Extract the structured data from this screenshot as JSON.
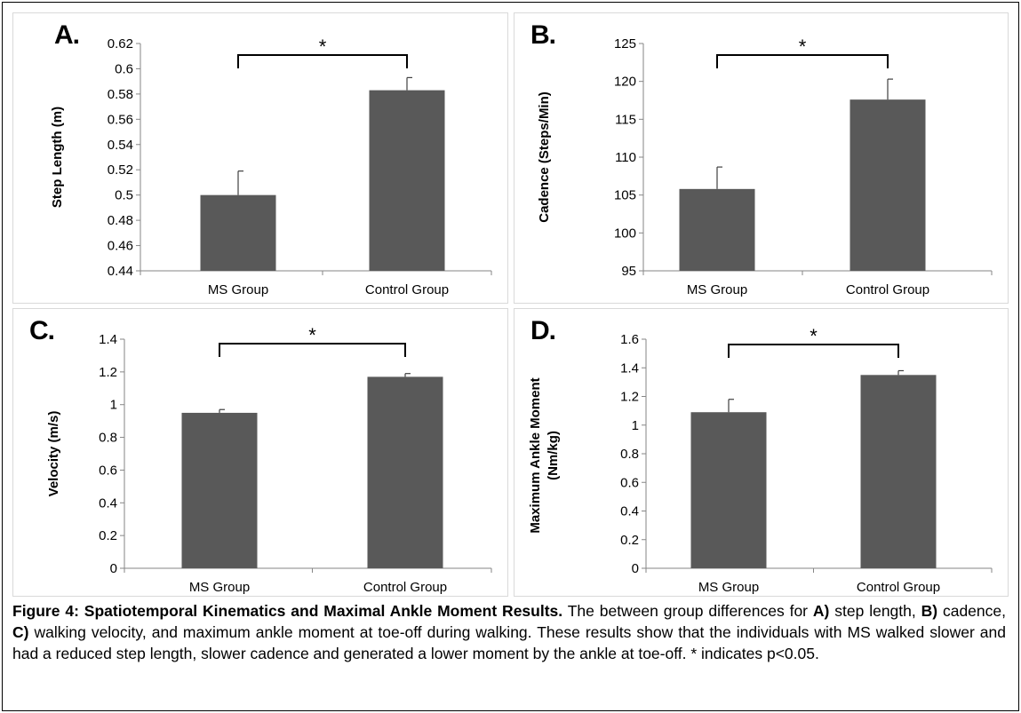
{
  "chart_data": [
    {
      "type": "bar",
      "panel_label": "A.",
      "ylabel": "Step Length (m)",
      "categories": [
        "MS Group",
        "Control Group"
      ],
      "values": [
        0.5,
        0.583
      ],
      "errors": [
        0.019,
        0.01
      ],
      "ylim": [
        0.44,
        0.62
      ],
      "yticks": [
        0.44,
        0.46,
        0.48,
        0.5,
        0.52,
        0.54,
        0.56,
        0.58,
        0.6,
        0.62
      ],
      "ytick_labels": [
        "0.44",
        "0.46",
        "0.48",
        "0.5",
        "0.52",
        "0.54",
        "0.56",
        "0.58",
        "0.6",
        "0.62"
      ],
      "significance": "*",
      "grid": false,
      "bar_color": "#595959"
    },
    {
      "type": "bar",
      "panel_label": "B.",
      "ylabel": "Cadence (Steps/Min)",
      "categories": [
        "MS Group",
        "Control Group"
      ],
      "values": [
        105.8,
        117.6
      ],
      "errors": [
        2.9,
        2.7
      ],
      "ylim": [
        95,
        125
      ],
      "yticks": [
        95,
        100,
        105,
        110,
        115,
        120,
        125
      ],
      "ytick_labels": [
        "95",
        "100",
        "105",
        "110",
        "115",
        "120",
        "125"
      ],
      "significance": "*",
      "grid": false,
      "bar_color": "#595959"
    },
    {
      "type": "bar",
      "panel_label": "C.",
      "ylabel": "Velocity (m/s)",
      "categories": [
        "MS Group",
        "Control Group"
      ],
      "values": [
        0.95,
        1.17
      ],
      "errors": [
        0.02,
        0.02
      ],
      "ylim": [
        0,
        1.4
      ],
      "yticks": [
        0,
        0.2,
        0.4,
        0.6,
        0.8,
        1,
        1.2,
        1.4
      ],
      "ytick_labels": [
        "0",
        "0.2",
        "0.4",
        "0.6",
        "0.8",
        "1",
        "1.2",
        "1.4"
      ],
      "significance": "*",
      "grid": false,
      "bar_color": "#595959"
    },
    {
      "type": "bar",
      "panel_label": "D.",
      "ylabel": "Maximum Ankle Moment",
      "ylabel_line2": "(Nm/kg)",
      "categories": [
        "MS Group",
        "Control Group"
      ],
      "values": [
        1.09,
        1.35
      ],
      "errors": [
        0.09,
        0.03
      ],
      "ylim": [
        0,
        1.6
      ],
      "yticks": [
        0,
        0.2,
        0.4,
        0.6,
        0.8,
        1,
        1.2,
        1.4,
        1.6
      ],
      "ytick_labels": [
        "0",
        "0.2",
        "0.4",
        "0.6",
        "0.8",
        "1",
        "1.2",
        "1.4",
        "1.6"
      ],
      "significance": "*",
      "grid": false,
      "bar_color": "#595959"
    }
  ],
  "caption": {
    "title": "Figure 4: Spatiotemporal Kinematics and Maximal Ankle Moment Results.",
    "text1": " The between group differences for ",
    "a_label": "A)",
    "text2": " step length, ",
    "b_label": "B)",
    "text3": " cadence, ",
    "c_label": "C)",
    "text4": " walking velocity, and maximum ankle moment at toe-off during walking. These results show that the individuals with MS walked slower and had a reduced step length, slower cadence and generated a lower moment by the ankle at toe-off. * indicates p<0.05."
  }
}
